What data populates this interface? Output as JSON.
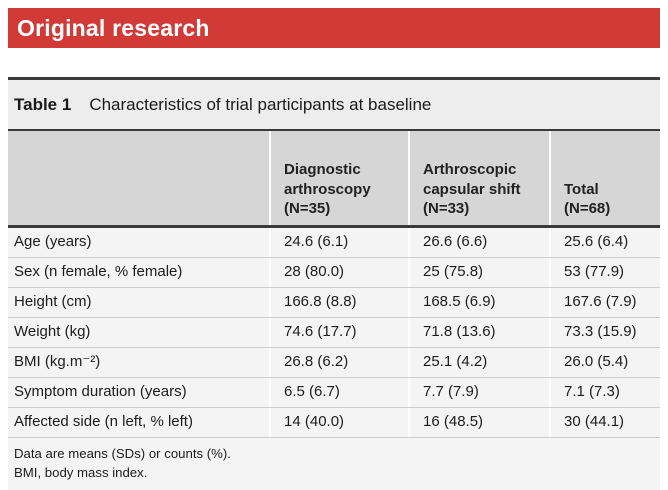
{
  "banner": {
    "label": "Original research",
    "bg_color": "#d13a36",
    "text_color": "#ffffff"
  },
  "table": {
    "title": {
      "label": "Table 1",
      "text": "Characteristics of trial participants at baseline"
    },
    "headers": {
      "col2": {
        "line1": "Diagnostic",
        "line2": "arthroscopy",
        "line3": "(N=35)"
      },
      "col3": {
        "line1": "Arthroscopic",
        "line2": "capsular shift",
        "line3": "(N=33)"
      },
      "col4": {
        "line1": "Total",
        "line2": "(N=68)"
      }
    },
    "rows": [
      {
        "label": "Age (years)",
        "c1": "24.6 (6.1)",
        "c2": "26.6 (6.6)",
        "c3": "25.6 (6.4)"
      },
      {
        "label": "Sex (n female, % female)",
        "c1": "28 (80.0)",
        "c2": "25 (75.8)",
        "c3": "53 (77.9)"
      },
      {
        "label": "Height (cm)",
        "c1": "166.8 (8.8)",
        "c2": "168.5 (6.9)",
        "c3": "167.6 (7.9)"
      },
      {
        "label": "Weight (kg)",
        "c1": "74.6 (17.7)",
        "c2": "71.8 (13.6)",
        "c3": "73.3 (15.9)"
      },
      {
        "label": "BMI (kg.m⁻²)",
        "c1": "26.8 (6.2)",
        "c2": "25.1 (4.2)",
        "c3": "26.0 (5.4)"
      },
      {
        "label": "Symptom duration (years)",
        "c1": "6.5 (6.7)",
        "c2": "7.7 (7.9)",
        "c3": "7.1 (7.3)"
      },
      {
        "label": "Affected side (n left, % left)",
        "c1": "14 (40.0)",
        "c2": "16 (48.5)",
        "c3": "30 (44.1)"
      }
    ],
    "footnotes": [
      "Data are means (SDs) or counts (%).",
      "BMI, body mass index."
    ]
  },
  "colors": {
    "banner_red": "#d13a36",
    "title_row_bg": "#ededed",
    "header_row_bg": "#d6d6d6",
    "body_row_bg": "#f4f4f4",
    "dark_rule": "#3b3a39"
  }
}
